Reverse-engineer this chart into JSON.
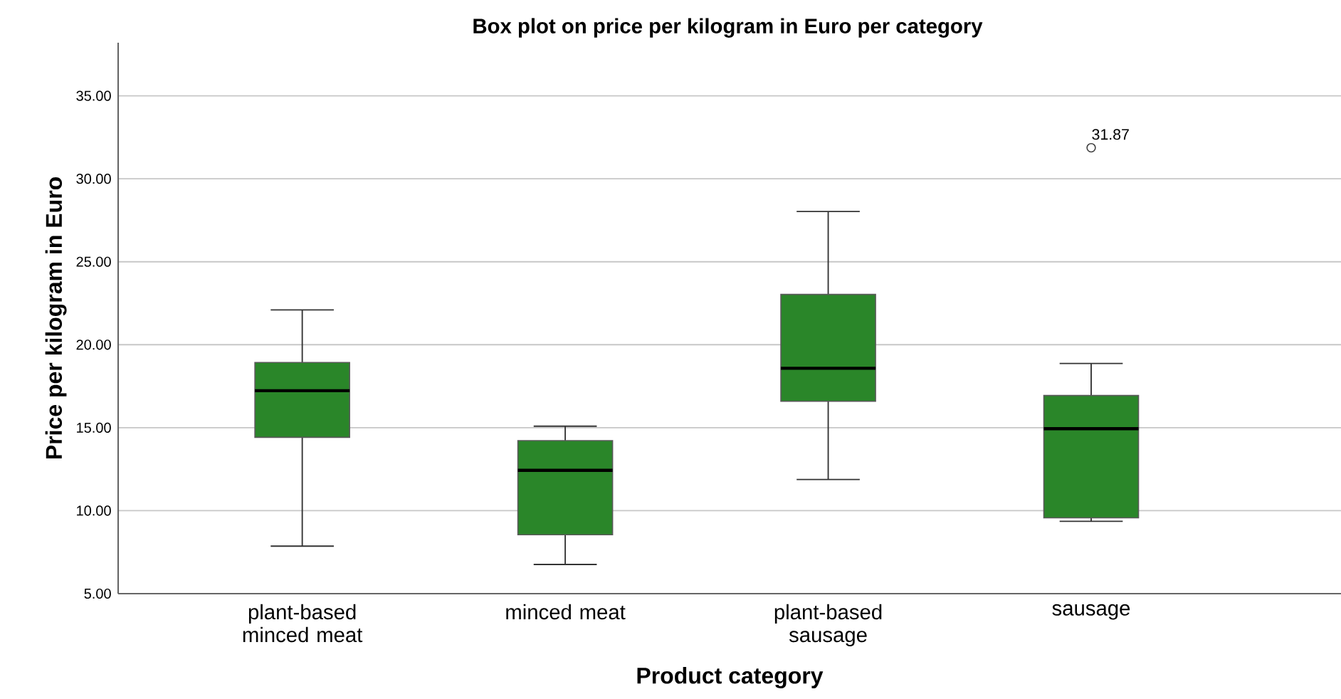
{
  "chart_data": {
    "type": "box",
    "title": "Box plot on price per kilogram in Euro per category",
    "xlabel": "Product category",
    "ylabel": "Price per kilogram in Euro",
    "categories": [
      "plant-based minced meat",
      "minced meat",
      "plant-based sausage",
      "sausage"
    ],
    "color": "#2a8629",
    "boxes": [
      {
        "low": 7.86,
        "q1": 14.42,
        "median": 17.23,
        "q3": 18.93,
        "high": 22.1
      },
      {
        "low": 6.76,
        "q1": 8.55,
        "median": 12.43,
        "q3": 14.22,
        "high": 15.09
      },
      {
        "low": 11.88,
        "q1": 16.59,
        "median": 18.58,
        "q3": 23.03,
        "high": 28.03
      },
      {
        "low": 9.36,
        "q1": 9.57,
        "median": 14.94,
        "q3": 16.94,
        "high": 18.87,
        "outliers": [
          31.87
        ]
      }
    ],
    "ylim": [
      5,
      38.2
    ],
    "yticks": [
      {
        "value": 5,
        "label": "5.00"
      },
      {
        "value": 10,
        "label": "10.00"
      },
      {
        "value": 15,
        "label": "15.00"
      },
      {
        "value": 20,
        "label": "20.00"
      },
      {
        "value": 25,
        "label": "25.00"
      },
      {
        "value": 30,
        "label": "30.00"
      },
      {
        "value": 35,
        "label": "35.00"
      }
    ],
    "grid": "y",
    "annotations": [
      "31.87"
    ]
  }
}
